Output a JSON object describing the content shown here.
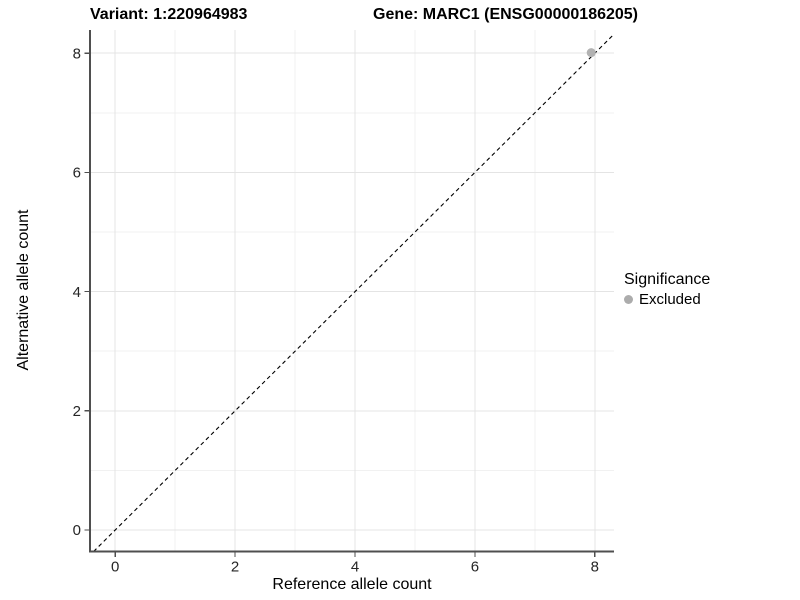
{
  "chart_data": {
    "type": "scatter",
    "titles": {
      "left": "Variant: 1:220964983",
      "right": "Gene: MARC1 (ENSG00000186205)"
    },
    "xlabel": "Reference allele count",
    "ylabel": "Alternative allele count",
    "xlim": [
      -0.42,
      8.32
    ],
    "ylim": [
      -0.36,
      8.39
    ],
    "x_ticks": [
      0,
      2,
      4,
      6,
      8
    ],
    "y_ticks": [
      0,
      2,
      4,
      6,
      8
    ],
    "x_minor_ticks": [
      1,
      3,
      5,
      7
    ],
    "y_minor_ticks": [
      1,
      3,
      5,
      7
    ],
    "grid": true,
    "reference_line": {
      "type": "identity",
      "slope": 1,
      "intercept": 0,
      "style": "dashed",
      "color": "#000000"
    },
    "series": [
      {
        "name": "Excluded",
        "color": "#b2b2b2",
        "points": [
          {
            "x": 7.94,
            "y": 8.01
          }
        ]
      }
    ],
    "legend": {
      "title": "Significance",
      "position": "right",
      "items": [
        {
          "label": "Excluded",
          "color": "#acacac"
        }
      ]
    }
  },
  "colors": {
    "background": "#ffffff",
    "grid_major": "#e4e4e4",
    "grid_minor": "#f1f1f1",
    "axis_line": "#4f4f4f",
    "tick_label": "#262626",
    "title_text": "#000000"
  }
}
